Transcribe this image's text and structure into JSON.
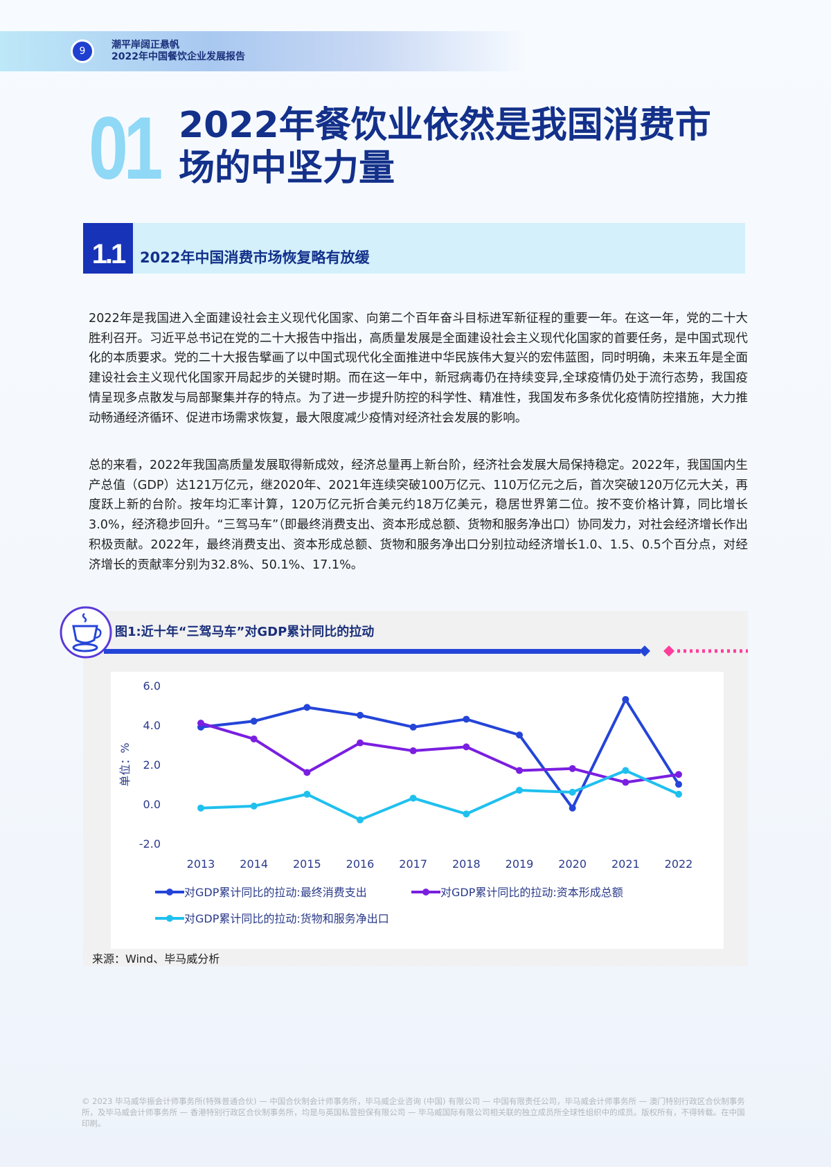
{
  "header": {
    "page_number": "9",
    "line1": "潮平岸阔正悬帆",
    "line2": "2022年中国餐饮企业发展报告"
  },
  "chapter": {
    "number": "01",
    "title_line1": "2022年餐饮业依然是我国消费市",
    "title_line2": "场的中坚力量"
  },
  "section": {
    "number": "1.1",
    "title": "2022年中国消费市场恢复略有放缓"
  },
  "paragraphs": [
    "2022年是我国进入全面建设社会主义现代化国家、向第二个百年奋斗目标进军新征程的重要一年。在这一年，党的二十大胜利召开。习近平总书记在党的二十大报告中指出，高质量发展是全面建设社会主义现代化国家的首要任务，是中国式现代化的本质要求。党的二十大报告擘画了以中国式现代化全面推进中华民族伟大复兴的宏伟蓝图，同时明确，未来五年是全面建设社会主义现代化国家开局起步的关键时期。而在这一年中，新冠病毒仍在持续变异,全球疫情仍处于流行态势，我国疫情呈现多点散发与局部聚集并存的特点。为了进一步提升防控的科学性、精准性，我国发布多条优化疫情防控措施，大力推动畅通经济循环、促进市场需求恢复，最大限度减少疫情对经济社会发展的影响。",
    "总的来看，2022年我国高质量发展取得新成效，经济总量再上新台阶，经济社会发展大局保持稳定。2022年，我国国内生产总值（GDP）达121万亿元，继2020年、2021年连续突破100万亿元、110万亿元之后，首次突破120万亿元大关，再度跃上新的台阶。按年均汇率计算，120万亿元折合美元约18万亿美元，稳居世界第二位。按不变价格计算，同比增长3.0%，经济稳步回升。“三驾马车”（即最终消费支出、资本形成总额、货物和服务净出口）协同发力，对社会经济增长作出积极贡献。2022年，最终消费支出、资本形成总额、货物和服务净出口分别拉动经济增长1.0、1.5、0.5个百分点，对经济增长的贡献率分别为32.8%、50.1%、17.1%。"
  ],
  "figure": {
    "title": "图1:近十年“三驾马车”对GDP累计同比的拉动",
    "icon": "coffee-cup-icon",
    "source": "来源：Wind、毕马威分析"
  },
  "chart_data": {
    "type": "line",
    "ylabel": "单位：%",
    "ylim": [
      -2.0,
      6.0
    ],
    "yticks": [
      "6.0",
      "4.0",
      "2.0",
      "0.0",
      "-2.0"
    ],
    "categories": [
      "2013",
      "2014",
      "2015",
      "2016",
      "2017",
      "2018",
      "2019",
      "2020",
      "2021",
      "2022"
    ],
    "grid": false,
    "legend_position": "bottom",
    "series": [
      {
        "name": "对GDP累计同比的拉动:最终消费支出",
        "color": "#2445d8",
        "values": [
          3.9,
          4.2,
          4.9,
          4.5,
          3.9,
          4.3,
          3.5,
          -0.2,
          5.3,
          1.0
        ]
      },
      {
        "name": "对GDP累计同比的拉动:资本形成总额",
        "color": "#7a1fe0",
        "values": [
          4.1,
          3.3,
          1.6,
          3.1,
          2.7,
          2.9,
          1.7,
          1.8,
          1.1,
          1.5
        ]
      },
      {
        "name": "对GDP累计同比的拉动:货物和服务净出口",
        "color": "#1fc0ee",
        "values": [
          -0.2,
          -0.1,
          0.5,
          -0.8,
          0.3,
          -0.5,
          0.7,
          0.6,
          1.7,
          0.5
        ]
      }
    ]
  },
  "footer": {
    "text": "© 2023 毕马威华振会计师事务所(特殊普通合伙) — 中国合伙制会计师事务所，毕马威企业咨询 (中国) 有限公司 — 中国有限责任公司，毕马威会计师事务所 — 澳门特别行政区合伙制事务所，及毕马威会计师事务所 — 香港特别行政区合伙制事务所，均是与英国私营担保有限公司 — 毕马威国际有限公司相关联的独立成员所全球性组织中的成员。版权所有，不得转载。在中国印刷。"
  },
  "colors": {
    "navy": "#13308a",
    "accent_blue": "#1733b8",
    "light_cyan": "#d3f0fb",
    "pink": "#ff3d9a"
  }
}
